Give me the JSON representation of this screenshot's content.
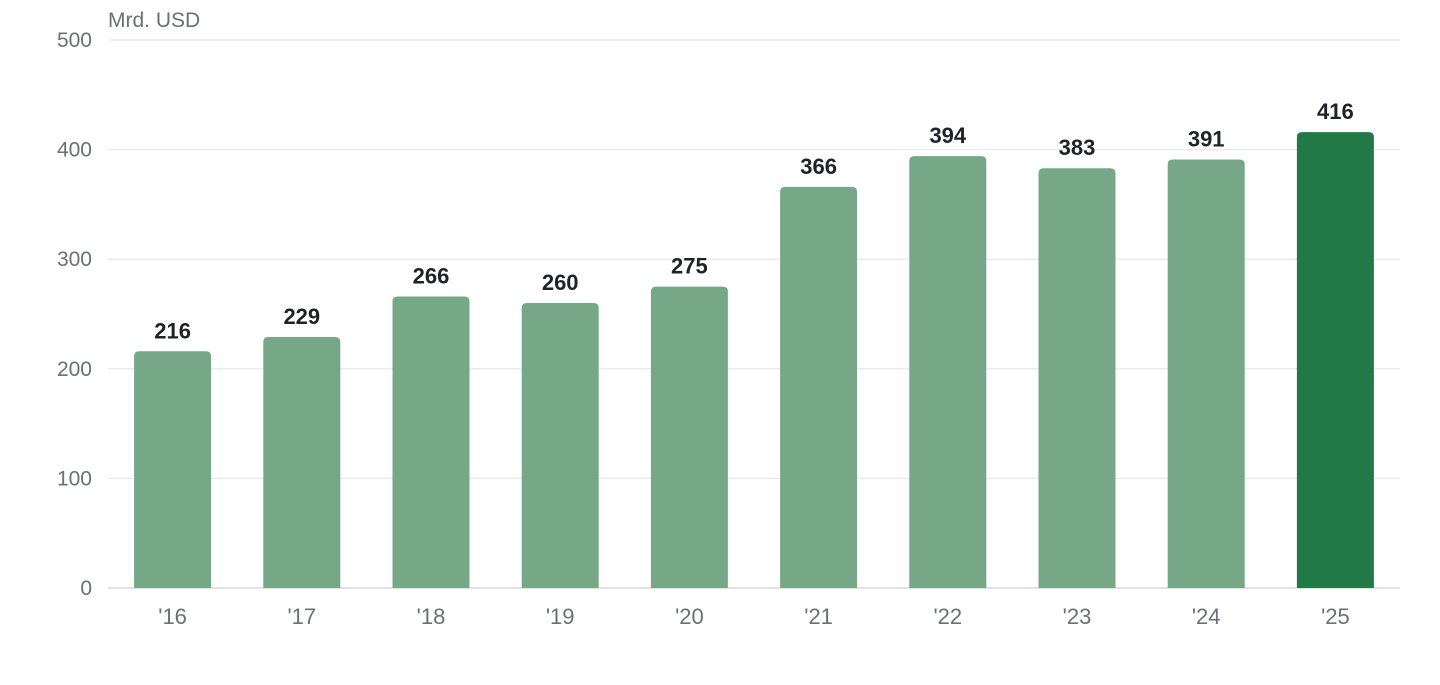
{
  "chart_data": {
    "type": "bar",
    "unit_label": "Mrd. USD",
    "categories": [
      "'16",
      "'17",
      "'18",
      "'19",
      "'20",
      "'21",
      "'22",
      "'23",
      "'24",
      "'25"
    ],
    "values": [
      216,
      229,
      266,
      260,
      275,
      366,
      394,
      383,
      391,
      416
    ],
    "ylim": [
      0,
      500
    ],
    "yticks": [
      0,
      100,
      200,
      300,
      400,
      500
    ],
    "grid": true,
    "legend": "none",
    "colors": {
      "bar": "#76a787",
      "highlight": "#217a45",
      "value_label": "#1f2329",
      "tick_label": "#6b6f76",
      "grid": "#ebebeb"
    },
    "highlight_index": 9
  }
}
